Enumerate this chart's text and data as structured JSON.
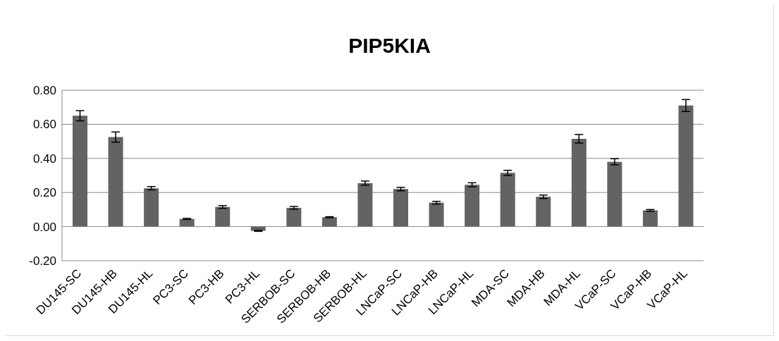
{
  "chart_data": {
    "type": "bar",
    "title": "PIP5KIA",
    "categories": [
      "DU145-SC",
      "DU145-HB",
      "DU145-HL",
      "PC3-SC",
      "PC3-HB",
      "PC3-HL",
      "SERBOB-SC",
      "SERBOB-HB",
      "SERBOB-HL",
      "LNCaP-SC",
      "LNCaP-HB",
      "LNCaP-HL",
      "MDA-SC",
      "MDA-HB",
      "MDA-HL",
      "VCaP-SC",
      "VCaP-HB",
      "VCaP-HL"
    ],
    "values": [
      0.65,
      0.525,
      0.225,
      0.045,
      0.115,
      -0.025,
      0.11,
      0.055,
      0.255,
      0.22,
      0.14,
      0.245,
      0.315,
      0.175,
      0.515,
      0.38,
      0.095,
      0.71
    ],
    "errors": [
      0.03,
      0.03,
      0.01,
      0.003,
      0.008,
      0.003,
      0.008,
      0.003,
      0.012,
      0.01,
      0.008,
      0.012,
      0.015,
      0.01,
      0.025,
      0.018,
      0.005,
      0.035
    ],
    "color": "#636363",
    "ylim": [
      -0.2,
      0.8
    ],
    "yticks": [
      {
        "value": -0.2,
        "label": "-0.20"
      },
      {
        "value": 0,
        "label": "0.00"
      },
      {
        "value": 0.2,
        "label": "0.20"
      },
      {
        "value": 0.4,
        "label": "0.40"
      },
      {
        "value": 0.6,
        "label": "0.60"
      },
      {
        "value": 0.8,
        "label": "0.80"
      }
    ],
    "grid": "y",
    "legend": false
  }
}
